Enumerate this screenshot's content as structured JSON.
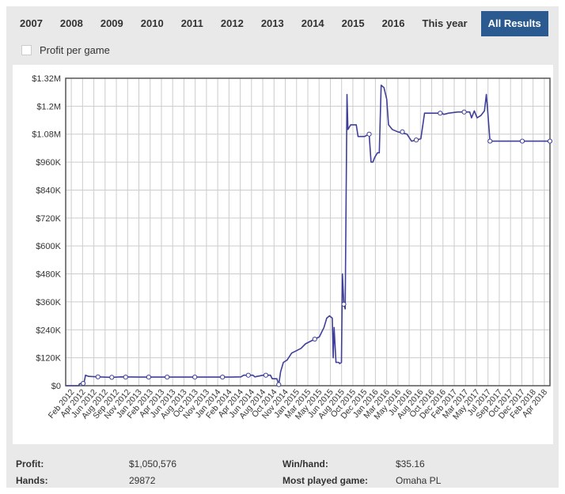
{
  "tabs": [
    {
      "label": "2007",
      "active": false
    },
    {
      "label": "2008",
      "active": false
    },
    {
      "label": "2009",
      "active": false
    },
    {
      "label": "2010",
      "active": false
    },
    {
      "label": "2011",
      "active": false
    },
    {
      "label": "2012",
      "active": false
    },
    {
      "label": "2013",
      "active": false
    },
    {
      "label": "2014",
      "active": false
    },
    {
      "label": "2015",
      "active": false
    },
    {
      "label": "2016",
      "active": false
    },
    {
      "label": "This year",
      "active": false
    },
    {
      "label": "All Results",
      "active": true
    }
  ],
  "profit_per_game": {
    "label": "Profit per game",
    "checked": false
  },
  "stats": {
    "profit_label": "Profit:",
    "profit_value": "$1,050,576",
    "hands_label": "Hands:",
    "hands_value": "29872",
    "winhand_label": "Win/hand:",
    "winhand_value": "$35.16",
    "most_played_label": "Most played game:",
    "most_played_value": "Omaha PL"
  },
  "colors": {
    "line": "#3f3f9a",
    "active_tab": "#2a5a8f",
    "grid": "#cccccc"
  },
  "chart_data": {
    "type": "line",
    "title": "",
    "xlabel": "",
    "ylabel": "",
    "ylim": [
      0,
      1320000
    ],
    "y_ticks": [
      "$0",
      "$120K",
      "$240K",
      "$360K",
      "$480K",
      "$600K",
      "$720K",
      "$840K",
      "$960K",
      "$1.08M",
      "$1.2M",
      "$1.32M"
    ],
    "y_tick_values": [
      0,
      120000,
      240000,
      360000,
      480000,
      600000,
      720000,
      840000,
      960000,
      1080000,
      1200000,
      1320000
    ],
    "x_ticks": [
      "Feb 2012",
      "Apr 2012",
      "Jun 2012",
      "Aug 2012",
      "Sep 2012",
      "Nov 2012",
      "Jan 2013",
      "Feb 2013",
      "Apr 2013",
      "Jun 2013",
      "Aug 2013",
      "Oct 2013",
      "Nov 2013",
      "Jan 2014",
      "Feb 2014",
      "Apr 2014",
      "Jun 2014",
      "Aug 2014",
      "Oct 2014",
      "Nov 2014",
      "Jan 2015",
      "Mar 2015",
      "May 2015",
      "Jun 2015",
      "Aug 2015",
      "Oct 2015",
      "Dec 2015",
      "Jan 2016",
      "Mar 2016",
      "May 2016",
      "Jul 2016",
      "Aug 2016",
      "Oct 2016",
      "Dec 2016",
      "Feb 2017",
      "Mar 2017",
      "May 2017",
      "Jul 2017",
      "Sep 2017",
      "Oct 2017",
      "Dec 2017",
      "Feb 2018",
      "Apr 2018"
    ],
    "grid": true,
    "series": [
      {
        "points": [
          [
            0.0,
            0
          ],
          [
            1.4,
            0
          ],
          [
            1.5,
            8000
          ],
          [
            1.9,
            10000
          ],
          [
            2.0,
            15000
          ],
          [
            2.15,
            45000
          ],
          [
            2.5,
            40000
          ],
          [
            3.5,
            38000
          ],
          [
            5.0,
            36000
          ],
          [
            6.0,
            38000
          ],
          [
            8.0,
            37000
          ],
          [
            10.0,
            37000
          ],
          [
            12.0,
            37000
          ],
          [
            14.0,
            37000
          ],
          [
            16.0,
            37000
          ],
          [
            18.0,
            37000
          ],
          [
            19.0,
            38000
          ],
          [
            19.3,
            45000
          ],
          [
            20.3,
            45000
          ],
          [
            20.5,
            38000
          ],
          [
            21.4,
            45000
          ],
          [
            22.2,
            45000
          ],
          [
            22.4,
            30000
          ],
          [
            22.9,
            30000
          ],
          [
            23.1,
            5000
          ],
          [
            23.3,
            60000
          ],
          [
            23.6,
            100000
          ],
          [
            24.0,
            110000
          ],
          [
            24.5,
            140000
          ],
          [
            25.0,
            150000
          ],
          [
            25.5,
            160000
          ],
          [
            26.0,
            180000
          ],
          [
            26.5,
            190000
          ],
          [
            27.0,
            200000
          ],
          [
            27.5,
            210000
          ],
          [
            28.0,
            250000
          ],
          [
            28.3,
            290000
          ],
          [
            28.6,
            300000
          ],
          [
            28.9,
            290000
          ],
          [
            29.0,
            120000
          ],
          [
            29.1,
            250000
          ],
          [
            29.3,
            100000
          ],
          [
            29.6,
            100000
          ],
          [
            29.7,
            95000
          ],
          [
            29.9,
            100000
          ],
          [
            30.0,
            480000
          ],
          [
            30.15,
            350000
          ],
          [
            30.3,
            330000
          ],
          [
            30.5,
            1250000
          ],
          [
            30.6,
            1100000
          ],
          [
            30.9,
            1120000
          ],
          [
            31.5,
            1120000
          ],
          [
            31.7,
            1070000
          ],
          [
            32.4,
            1070000
          ],
          [
            32.9,
            1080000
          ],
          [
            33.1,
            960000
          ],
          [
            33.3,
            960000
          ],
          [
            33.5,
            980000
          ],
          [
            33.8,
            1000000
          ],
          [
            34.0,
            1000000
          ],
          [
            34.2,
            1290000
          ],
          [
            34.5,
            1280000
          ],
          [
            34.8,
            1230000
          ],
          [
            35.0,
            1120000
          ],
          [
            35.4,
            1100000
          ],
          [
            36.0,
            1090000
          ],
          [
            37.0,
            1080000
          ],
          [
            37.5,
            1050000
          ],
          [
            38.0,
            1055000
          ],
          [
            38.5,
            1060000
          ],
          [
            38.9,
            1170000
          ],
          [
            40.0,
            1170000
          ],
          [
            40.8,
            1170000
          ],
          [
            41.0,
            1165000
          ],
          [
            41.5,
            1170000
          ],
          [
            42.5,
            1175000
          ],
          [
            43.8,
            1175000
          ],
          [
            44.0,
            1150000
          ],
          [
            44.3,
            1180000
          ],
          [
            44.6,
            1150000
          ],
          [
            45.0,
            1160000
          ],
          [
            45.4,
            1180000
          ],
          [
            45.6,
            1250000
          ],
          [
            45.75,
            1180000
          ],
          [
            46.0,
            1050000
          ],
          [
            47.0,
            1050000
          ],
          [
            48.0,
            1050000
          ],
          [
            50.0,
            1050000
          ],
          [
            52.0,
            1050000
          ],
          [
            52.5,
            1050000
          ]
        ]
      }
    ],
    "markers": [
      [
        1.9,
        10000
      ],
      [
        3.5,
        38000
      ],
      [
        5.0,
        36000
      ],
      [
        6.5,
        37000
      ],
      [
        9.0,
        37000
      ],
      [
        11.0,
        37000
      ],
      [
        14.0,
        37000
      ],
      [
        17.0,
        37000
      ],
      [
        19.8,
        45000
      ],
      [
        21.7,
        45000
      ],
      [
        23.1,
        5000
      ],
      [
        27.0,
        200000
      ],
      [
        30.15,
        350000
      ],
      [
        32.9,
        1080000
      ],
      [
        36.5,
        1090000
      ],
      [
        38.0,
        1055000
      ],
      [
        40.6,
        1170000
      ],
      [
        43.2,
        1175000
      ],
      [
        46.0,
        1050000
      ],
      [
        49.5,
        1050000
      ],
      [
        52.5,
        1050000
      ]
    ]
  }
}
